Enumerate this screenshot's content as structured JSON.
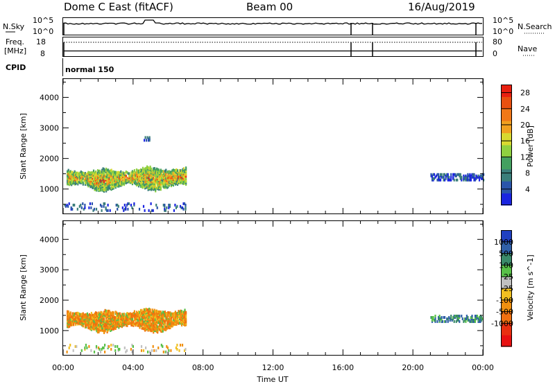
{
  "header": {
    "station": "Dome C East (fitACF)",
    "beam": "Beam 00",
    "date": "16/Aug/2019"
  },
  "top_panels": {
    "nsky": {
      "label": "N.Sky",
      "left_ticks": [
        "10^5",
        "10^0"
      ]
    },
    "nsearch": {
      "label": "N.Search",
      "right_ticks": [
        "10^5",
        "10^0"
      ]
    },
    "freq": {
      "label_line1": "Freq.",
      "label_line2": "[MHz]",
      "left_ticks": [
        "18",
        "8"
      ]
    },
    "nave": {
      "label": "Nave",
      "right_ticks": [
        "80",
        "0"
      ]
    },
    "cpid": {
      "label": "CPID",
      "mode_text": "normal 150"
    }
  },
  "chart_data": [
    {
      "type": "heatmap",
      "title": "",
      "xlabel": "",
      "ylabel": "Slant Range [km]",
      "yticks": [
        "1000",
        "2000",
        "3000",
        "4000"
      ],
      "xlim_hours": [
        0,
        24
      ],
      "ylim_km": [
        200,
        4600
      ],
      "colorbar": {
        "label": "Power [dB]",
        "ticks": [
          "4",
          "8",
          "12",
          "16",
          "20",
          "24",
          "28"
        ],
        "range": [
          0,
          30
        ],
        "colors": [
          "#1a24e0",
          "#2a55aa",
          "#3a7e7a",
          "#44a060",
          "#8fd040",
          "#d8d830",
          "#f0a020",
          "#f07818",
          "#e85010",
          "#e82010"
        ]
      },
      "echo_regions": [
        {
          "t0": 0.2,
          "t1": 7.0,
          "r0": 1000,
          "r1": 1650,
          "level": "mixed"
        },
        {
          "t0": 0.0,
          "t1": 7.0,
          "r0": 250,
          "r1": 500,
          "level": "low"
        },
        {
          "t0": 21.0,
          "t1": 24.0,
          "r0": 1250,
          "r1": 1450,
          "level": "low"
        },
        {
          "t0": 4.6,
          "t1": 4.9,
          "r0": 2550,
          "r1": 2650,
          "level": "low"
        }
      ]
    },
    {
      "type": "heatmap",
      "title": "",
      "xlabel": "Time UT",
      "ylabel": "Slant Range [km]",
      "xticks": [
        "00:00",
        "04:00",
        "08:00",
        "12:00",
        "16:00",
        "20:00",
        "00:00"
      ],
      "yticks": [
        "1000",
        "2000",
        "3000",
        "4000"
      ],
      "xlim_hours": [
        0,
        24
      ],
      "ylim_km": [
        200,
        4600
      ],
      "colorbar": {
        "label": "Velocity [m s^-1]",
        "ticks": [
          "1000",
          "500",
          "100",
          "25",
          "-25",
          "-100",
          "-500",
          "-1000"
        ],
        "colors": [
          "#2040c0",
          "#3060a8",
          "#3a8a6a",
          "#58c048",
          "#c0c0c0",
          "#f0c020",
          "#f09010",
          "#f07010",
          "#e83010",
          "#e81010"
        ]
      },
      "echo_regions": [
        {
          "t0": 0.2,
          "t1": 7.0,
          "r0": 1000,
          "r1": 1650,
          "level": "negative"
        },
        {
          "t0": 0.0,
          "t1": 7.0,
          "r0": 250,
          "r1": 500,
          "level": "mixed"
        },
        {
          "t0": 21.0,
          "t1": 24.0,
          "r0": 1250,
          "r1": 1450,
          "level": "positive"
        }
      ]
    }
  ]
}
